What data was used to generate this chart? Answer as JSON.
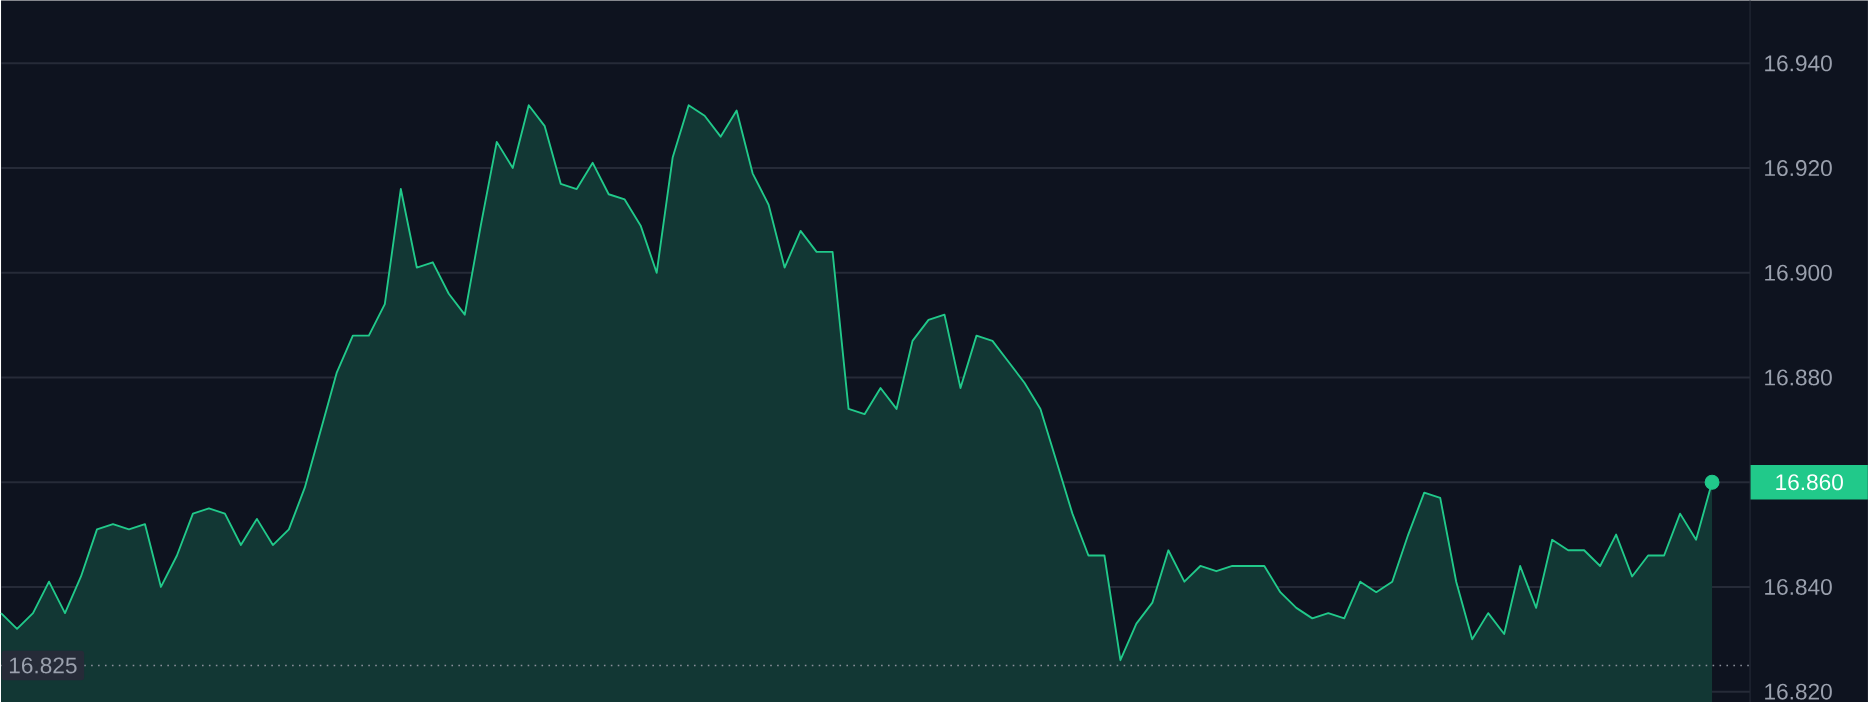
{
  "chart_data": {
    "type": "area",
    "color": "#21c98a",
    "categories": [
      null,
      null,
      null,
      null,
      null,
      null,
      null,
      null,
      null,
      null,
      null,
      null,
      null,
      null,
      null,
      null,
      null,
      null,
      null,
      null,
      null,
      null,
      null,
      null,
      null,
      null,
      null,
      null,
      null,
      null,
      null,
      null,
      null,
      null,
      null,
      null,
      null,
      null,
      null,
      null,
      null,
      null,
      null,
      null,
      null,
      null,
      null,
      null,
      null,
      null,
      null,
      null,
      null,
      null,
      null,
      null,
      null,
      null,
      null,
      null,
      null,
      null,
      null,
      null,
      null,
      null,
      null,
      null,
      null,
      null,
      null,
      null,
      null,
      null,
      null,
      null,
      null,
      null,
      null,
      null,
      null,
      null,
      null,
      null,
      null,
      null,
      null,
      null,
      null,
      null,
      null,
      null,
      null,
      null,
      null,
      null,
      null,
      null,
      null,
      null,
      null,
      null,
      null,
      null,
      null,
      null,
      null,
      null
    ],
    "values": [
      16.835,
      16.832,
      16.835,
      16.841,
      16.835,
      16.842,
      16.851,
      16.852,
      16.851,
      16.852,
      16.84,
      16.846,
      16.854,
      16.855,
      16.854,
      16.848,
      16.853,
      16.848,
      16.851,
      16.859,
      16.87,
      16.881,
      16.888,
      16.888,
      16.894,
      16.916,
      16.901,
      16.902,
      16.896,
      16.892,
      16.909,
      16.925,
      16.92,
      16.932,
      16.928,
      16.917,
      16.916,
      16.921,
      16.915,
      16.914,
      16.909,
      16.9,
      16.922,
      16.932,
      16.93,
      16.926,
      16.931,
      16.919,
      16.913,
      16.901,
      16.908,
      16.904,
      16.904,
      16.874,
      16.873,
      16.878,
      16.874,
      16.887,
      16.891,
      16.892,
      16.878,
      16.888,
      16.887,
      16.883,
      16.879,
      16.874,
      16.864,
      16.854,
      16.846,
      16.846,
      16.826,
      16.833,
      16.837,
      16.847,
      16.841,
      16.844,
      16.843,
      16.844,
      16.844,
      16.844,
      16.839,
      16.836,
      16.834,
      16.835,
      16.834,
      16.841,
      16.839,
      16.841,
      16.85,
      16.858,
      16.857,
      16.841,
      16.83,
      16.835,
      16.831,
      16.844,
      16.836,
      16.849,
      16.847,
      16.847,
      16.844,
      16.85,
      16.842,
      16.846,
      16.846,
      16.854,
      16.849,
      16.86
    ],
    "ylim": [
      16.818,
      16.952
    ],
    "yticks": [
      {
        "value": 16.82,
        "label": "16.820"
      },
      {
        "value": 16.84,
        "label": "16.840"
      },
      {
        "value": 16.86,
        "label": null
      },
      {
        "value": 16.88,
        "label": "16.880"
      },
      {
        "value": 16.9,
        "label": "16.900"
      },
      {
        "value": 16.92,
        "label": "16.920"
      },
      {
        "value": 16.94,
        "label": "16.940"
      }
    ],
    "grid": "y",
    "ref_lines": [
      {
        "axis": "y",
        "value": 16.825,
        "label": "16.825",
        "color": "#8a8f9a",
        "line_style": "dotted"
      }
    ],
    "annotations": [
      "16.860"
    ]
  }
}
